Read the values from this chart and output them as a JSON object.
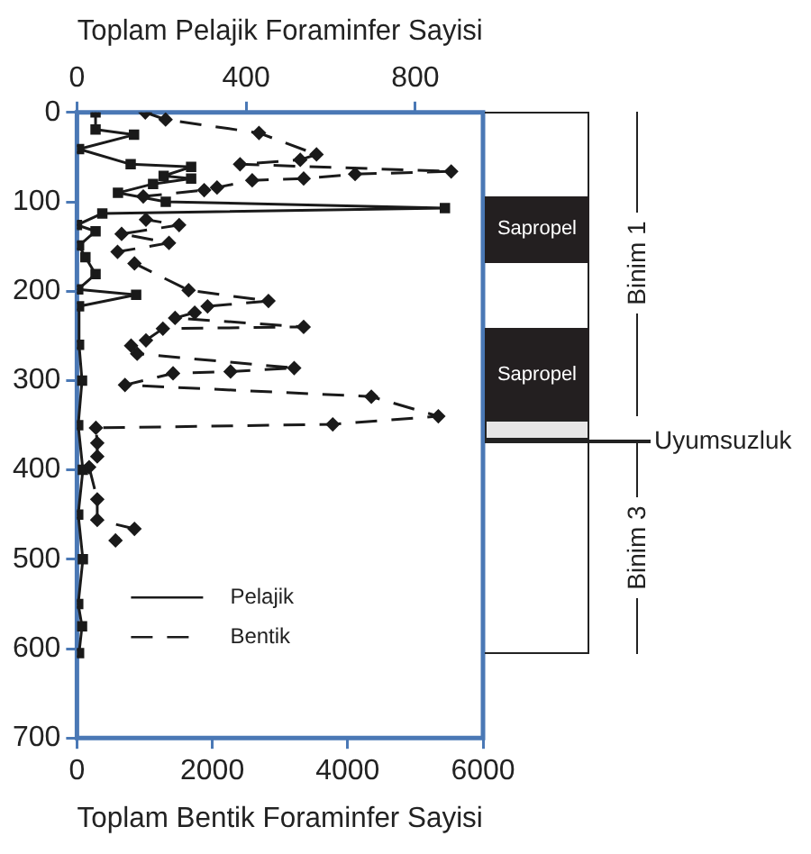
{
  "chart_data": {
    "type": "line",
    "xlabel": "Toplam Bentik Foraminfer Sayisi",
    "x2label": "Toplam Pelajik Foraminfer Sayisi",
    "xlim": [
      0,
      6000
    ],
    "xticks": [
      0,
      2000,
      4000,
      6000
    ],
    "x2lim": [
      0,
      960
    ],
    "x2ticks": [
      0,
      400,
      800
    ],
    "ylim": [
      700,
      0
    ],
    "yticks": [
      0,
      100,
      200,
      300,
      400,
      500,
      600,
      700
    ],
    "grid": false,
    "legend": "bottom left",
    "series": [
      {
        "name": "Pelajik",
        "axis": "x2",
        "color": "#1a1a1a",
        "line_style": "solid",
        "marker": "square",
        "x": [
          44,
          44,
          135,
          5,
          127,
          270,
          205,
          270,
          180,
          97,
          210,
          870,
          60,
          0,
          44,
          5,
          20,
          44,
          3,
          140,
          5,
          5,
          12,
          3,
          14,
          3,
          14,
          3,
          12,
          5
        ],
        "values": [
          0,
          19,
          25,
          41,
          58,
          61,
          71,
          74,
          80,
          90,
          100,
          107,
          113,
          126,
          133,
          149,
          162,
          181,
          198,
          204,
          217,
          260,
          300,
          350,
          400,
          450,
          500,
          550,
          575,
          605
        ]
      },
      {
        "name": "Bentik",
        "color": "#1a1a1a",
        "line_style": "dashed",
        "marker": "diamond",
        "x": [
          1010,
          1310,
          2690,
          3540,
          3300,
          2410,
          5530,
          4110,
          3350,
          2590,
          2070,
          1880,
          980,
          1020,
          1510,
          660,
          1360,
          600,
          850,
          1650,
          2830,
          1930,
          1740,
          1450,
          3350,
          1270,
          1020,
          800,
          890,
          3210,
          2270,
          1420,
          710,
          4350,
          5340,
          3780,
          280,
          300,
          300,
          180,
          300,
          300,
          850,
          570
        ],
        "values": [
          0,
          8,
          23,
          47,
          53,
          58,
          66,
          69,
          74,
          76,
          84,
          87,
          94,
          120,
          126,
          136,
          146,
          156,
          169,
          199,
          211,
          217,
          224,
          230,
          240,
          242,
          255,
          261,
          270,
          286,
          290,
          292,
          305,
          318,
          340,
          349,
          353,
          370,
          385,
          397,
          433,
          456,
          466,
          479
        ]
      }
    ],
    "annotations": [
      "Sapropel",
      "Sapropel",
      "Binim 1",
      "Uyumsuzluk",
      "Binim 3"
    ]
  }
}
